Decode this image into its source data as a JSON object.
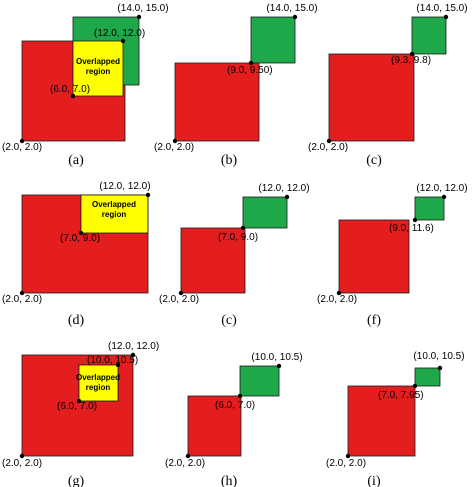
{
  "colors": {
    "red_square": "#e41e1e",
    "green_square": "#1fa84a",
    "overlap_region": "#ffff00",
    "outline": "#1a1a1a"
  },
  "panels": [
    {
      "caption": "(a)",
      "points": [
        "(14.0, 15.0)",
        "(12.0, 12.0)",
        "(6.0, 7.0)",
        "(2.0, 2.0)"
      ],
      "overlap": [
        "Overlapped",
        "region"
      ]
    },
    {
      "caption": "(b)",
      "points": [
        "(14.0, 15.0)",
        "(9.0, 9.50)",
        "(2.0, 2.0)"
      ]
    },
    {
      "caption": "(c)",
      "points": [
        "(14.0, 15.0)",
        "(9.3, 9.8)",
        "(2.0, 2.0)"
      ]
    },
    {
      "caption": "(d)",
      "points": [
        "(12.0, 12.0)",
        "(7.0, 9.0)",
        "(2.0, 2.0)"
      ],
      "overlap": [
        "Overlapped",
        "region"
      ]
    },
    {
      "caption": "(c)",
      "points": [
        "(12.0, 12.0)",
        "(7.0, 9.0)",
        "(2.0, 2.0)"
      ]
    },
    {
      "caption": "(f)",
      "points": [
        "(12.0, 12.0)",
        "(9.0, 11.6)",
        "(2.0, 2.0)"
      ]
    },
    {
      "caption": "(g)",
      "points": [
        "(12.0, 12.0)",
        "(10.0, 10.5)",
        "(6.0, 7.0)",
        "(2.0, 2.0)"
      ],
      "overlap": [
        "Overlapped",
        "region"
      ]
    },
    {
      "caption": "(h)",
      "points": [
        "(10.0, 10.5)",
        "(6.0, 7.0)",
        "(2.0, 2.0)"
      ]
    },
    {
      "caption": "(i)",
      "points": [
        "(10.0, 10.5)",
        "(7.0, 7.95)",
        "(2.0, 2.0)"
      ]
    }
  ]
}
